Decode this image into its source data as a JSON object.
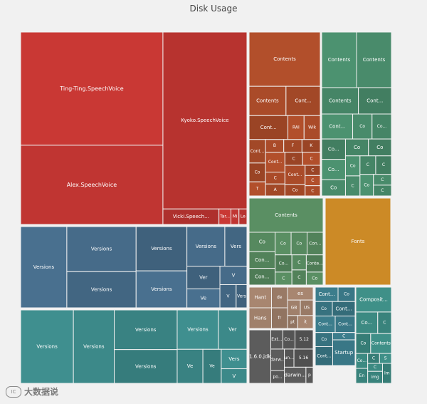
{
  "chart_data": {
    "type": "treemap",
    "title": "Disk Usage",
    "groups": [
      {
        "name": "voices",
        "color": "#c93834",
        "items": [
          {
            "label": "Ting-Ting.SpeechVoice",
            "value": 260
          },
          {
            "label": "Alex.SpeechVoice",
            "value": 182
          },
          {
            "label": "Kyoko.SpeechVoice",
            "value": 240
          },
          {
            "label": "Vicki.Speech...",
            "value": 14
          },
          {
            "label": "Tar...",
            "value": 3
          },
          {
            "label": "Mi",
            "value": 2
          },
          {
            "label": "Le",
            "value": 2
          }
        ]
      },
      {
        "name": "frameworks",
        "color": "#49708f",
        "items": [
          {
            "label": "Versions",
            "value": 60
          },
          {
            "label": "Versions",
            "value": 50
          },
          {
            "label": "Versions",
            "value": 40
          },
          {
            "label": "Versions",
            "value": 36
          },
          {
            "label": "Versions",
            "value": 30
          },
          {
            "label": "Versions",
            "value": 24
          },
          {
            "label": "Vers",
            "value": 14
          },
          {
            "label": "Ver",
            "value": 12
          },
          {
            "label": "Ve",
            "value": 10
          },
          {
            "label": "V",
            "value": 8
          },
          {
            "label": "V",
            "value": 6
          },
          {
            "label": "Vers",
            "value": 4
          }
        ]
      },
      {
        "name": "private-frameworks",
        "color": "#3f8f8f",
        "items": [
          {
            "label": "Versions",
            "value": 62
          },
          {
            "label": "Versions",
            "value": 48
          },
          {
            "label": "Versions",
            "value": 40
          },
          {
            "label": "Versions",
            "value": 34
          },
          {
            "label": "Versions",
            "value": 26
          },
          {
            "label": "Ver",
            "value": 18
          },
          {
            "label": "Ve",
            "value": 14
          },
          {
            "label": "Ve",
            "value": 10
          },
          {
            "label": "Vers",
            "value": 8
          },
          {
            "label": "V",
            "value": 6
          }
        ]
      },
      {
        "name": "contents-orange",
        "color": "#b24f2b",
        "items": [
          {
            "label": "Contents",
            "value": 100
          },
          {
            "label": "Contents",
            "value": 28
          },
          {
            "label": "Cont...",
            "value": 26
          },
          {
            "label": "Cont...",
            "value": 24
          },
          {
            "label": "RAI",
            "value": 10
          },
          {
            "label": "Wik",
            "value": 10
          },
          {
            "label": "Cont...",
            "value": 10
          },
          {
            "label": "Co",
            "value": 8
          },
          {
            "label": "T",
            "value": 6
          },
          {
            "label": "B",
            "value": 6
          },
          {
            "label": "F",
            "value": 6
          },
          {
            "label": "K",
            "value": 6
          },
          {
            "label": "Cont...",
            "value": 10
          },
          {
            "label": "C",
            "value": 6
          },
          {
            "label": "A",
            "value": 6
          },
          {
            "label": "C",
            "value": 6
          },
          {
            "label": "C",
            "value": 6
          },
          {
            "label": "Cont...",
            "value": 10
          },
          {
            "label": "Co",
            "value": 6
          },
          {
            "label": "C",
            "value": 4
          },
          {
            "label": "C",
            "value": 4
          },
          {
            "label": "C",
            "value": 4
          }
        ]
      },
      {
        "name": "contents-green",
        "color": "#4c9270",
        "items": [
          {
            "label": "Contents",
            "value": 40
          },
          {
            "label": "Contents",
            "value": 40
          },
          {
            "label": "Contents",
            "value": 20
          },
          {
            "label": "Cont...",
            "value": 18
          },
          {
            "label": "Cont...",
            "value": 16
          },
          {
            "label": "Co",
            "value": 10
          },
          {
            "label": "Co...",
            "value": 10
          },
          {
            "label": "Co...",
            "value": 10
          },
          {
            "label": "Co...",
            "value": 10
          },
          {
            "label": "Co",
            "value": 8
          },
          {
            "label": "Co",
            "value": 8
          },
          {
            "label": "Co",
            "value": 8
          },
          {
            "label": "Co",
            "value": 6
          },
          {
            "label": "C",
            "value": 6
          },
          {
            "label": "C",
            "value": 6
          },
          {
            "label": "C",
            "value": 6
          },
          {
            "label": "Co",
            "value": 6
          },
          {
            "label": "C",
            "value": 4
          },
          {
            "label": "C",
            "value": 4
          }
        ]
      },
      {
        "name": "contents-green-2",
        "color": "#5a8f63",
        "items": [
          {
            "label": "Contents",
            "value": 70
          },
          {
            "label": "Co",
            "value": 14
          },
          {
            "label": "Con...",
            "value": 12
          },
          {
            "label": "Con...",
            "value": 12
          },
          {
            "label": "Co",
            "value": 10
          },
          {
            "label": "Co",
            "value": 10
          },
          {
            "label": "Con...",
            "value": 10
          },
          {
            "label": "Co...",
            "value": 8
          },
          {
            "label": "C",
            "value": 6
          },
          {
            "label": "C",
            "value": 6
          },
          {
            "label": "C",
            "value": 6
          },
          {
            "label": "Conte...",
            "value": 8
          },
          {
            "label": "Co",
            "value": 6
          }
        ]
      },
      {
        "name": "fonts",
        "color": "#cc8a26",
        "items": [
          {
            "label": "Fonts",
            "value": 90
          }
        ]
      },
      {
        "name": "tan",
        "color": "#a88670",
        "items": [
          {
            "label": "Hant",
            "value": 14
          },
          {
            "label": "Hans",
            "value": 14
          },
          {
            "label": "de",
            "value": 10
          },
          {
            "label": "fr",
            "value": 10
          },
          {
            "label": "es",
            "value": 10
          },
          {
            "label": "GB",
            "value": 6
          },
          {
            "label": "US",
            "value": 6
          },
          {
            "label": "pt",
            "value": 4
          },
          {
            "label": "it",
            "value": 6
          }
        ]
      },
      {
        "name": "gray",
        "color": "#5c5c5c",
        "items": [
          {
            "label": "1.6.0.jdk",
            "value": 40
          },
          {
            "label": "Ext...",
            "value": 8
          },
          {
            "label": "Co...",
            "value": 8
          },
          {
            "label": "5.12",
            "value": 12
          },
          {
            "label": "darw...",
            "value": 10
          },
          {
            "label": "po...",
            "value": 6
          },
          {
            "label": "un...",
            "value": 6
          },
          {
            "label": "5.16",
            "value": 12
          },
          {
            "label": "darwin...",
            "value": 12
          },
          {
            "label": "p",
            "value": 4
          }
        ]
      },
      {
        "name": "teal-small",
        "color": "#3c7d8c",
        "items": [
          {
            "label": "Cont...",
            "value": 8
          },
          {
            "label": "Co",
            "value": 6
          },
          {
            "label": "Co",
            "value": 6
          },
          {
            "label": "Cont...",
            "value": 8
          },
          {
            "label": "Cont...",
            "value": 8
          },
          {
            "label": "Cont...",
            "value": 8
          },
          {
            "label": "Co",
            "value": 6
          },
          {
            "label": "Cont...",
            "value": 8
          },
          {
            "label": "C",
            "value": 4
          },
          {
            "label": "Startup",
            "value": 14
          }
        ]
      },
      {
        "name": "misc",
        "color": "#3f9088",
        "items": [
          {
            "label": "Composit...",
            "value": 30
          },
          {
            "label": "Co...",
            "value": 16
          },
          {
            "label": "C",
            "value": 10
          },
          {
            "label": "Co",
            "value": 10
          },
          {
            "label": "Contents",
            "value": 14
          },
          {
            "label": "Co...",
            "value": 6
          },
          {
            "label": "En",
            "value": 6
          },
          {
            "label": "C",
            "value": 4
          },
          {
            "label": "S",
            "value": 4
          },
          {
            "label": "C",
            "value": 4
          },
          {
            "label": "img",
            "value": 6
          },
          {
            "label": "Im",
            "value": 6
          }
        ]
      }
    ]
  },
  "watermark": {
    "logo": "IC",
    "text": "大数据说"
  }
}
